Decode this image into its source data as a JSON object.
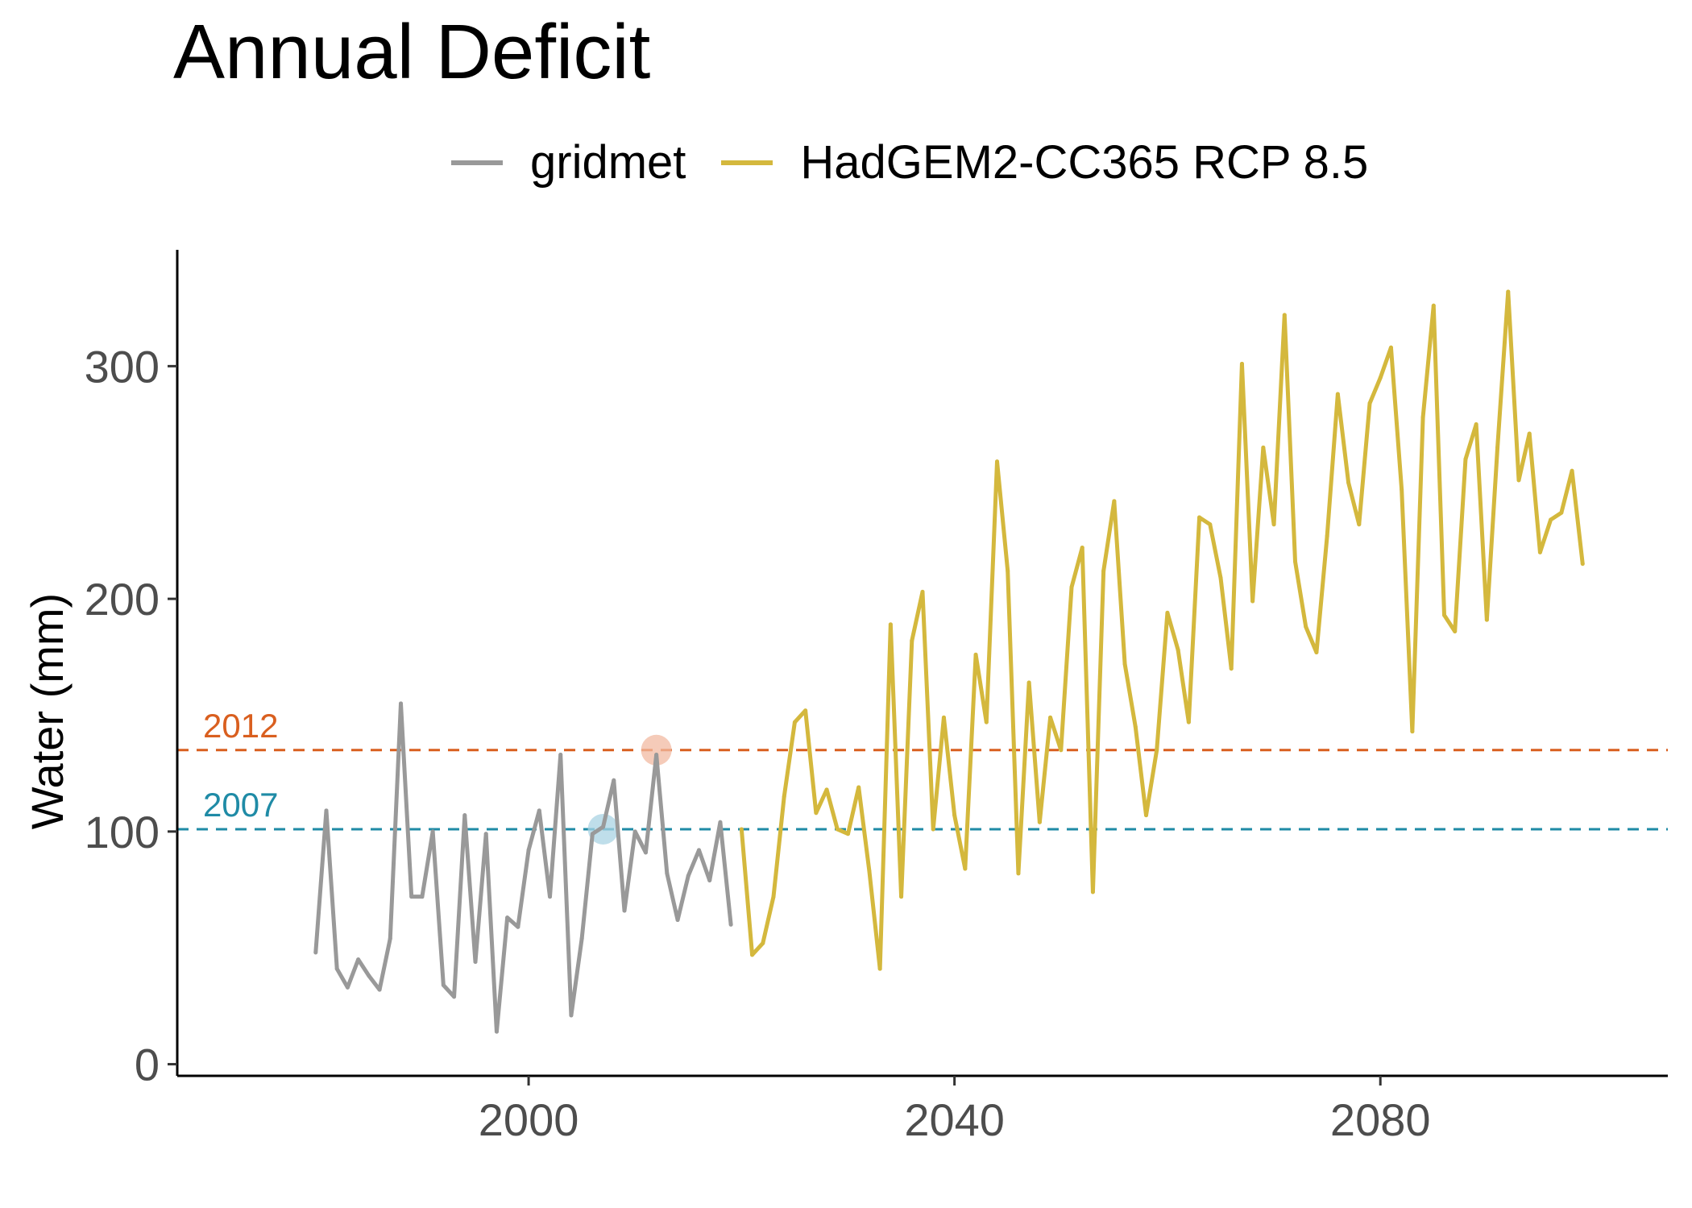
{
  "chart_data": {
    "type": "line",
    "title": "Annual Deficit",
    "xlabel": "",
    "ylabel": "Water (mm)",
    "xlim": [
      1967,
      2107
    ],
    "ylim": [
      -5,
      350
    ],
    "x_ticks": [
      2000,
      2040,
      2080
    ],
    "y_ticks": [
      0,
      100,
      200,
      300
    ],
    "grid": false,
    "legend_position": "top",
    "series": [
      {
        "name": "gridmet",
        "color": "#999999",
        "x": [
          1980,
          1981,
          1982,
          1983,
          1984,
          1985,
          1986,
          1987,
          1988,
          1989,
          1990,
          1991,
          1992,
          1993,
          1994,
          1995,
          1996,
          1997,
          1998,
          1999,
          2000,
          2001,
          2002,
          2003,
          2004,
          2005,
          2006,
          2007,
          2008,
          2009,
          2010,
          2011,
          2012,
          2013,
          2014,
          2015,
          2016,
          2017,
          2018,
          2019
        ],
        "y": [
          48,
          109,
          41,
          33,
          45,
          38,
          32,
          54,
          155,
          72,
          72,
          100,
          34,
          29,
          107,
          44,
          99,
          14,
          63,
          59,
          92,
          109,
          72,
          133,
          21,
          54,
          99,
          102,
          122,
          66,
          100,
          91,
          133,
          82,
          62,
          81,
          92,
          79,
          104,
          60
        ]
      },
      {
        "name": "HadGEM2-CC365 RCP 8.5",
        "color": "#d4b83d",
        "x": [
          2020,
          2021,
          2022,
          2023,
          2024,
          2025,
          2026,
          2027,
          2028,
          2029,
          2030,
          2031,
          2032,
          2033,
          2034,
          2035,
          2036,
          2037,
          2038,
          2039,
          2040,
          2041,
          2042,
          2043,
          2044,
          2045,
          2046,
          2047,
          2048,
          2049,
          2050,
          2051,
          2052,
          2053,
          2054,
          2055,
          2056,
          2057,
          2058,
          2059,
          2060,
          2061,
          2062,
          2063,
          2064,
          2065,
          2066,
          2067,
          2068,
          2069,
          2070,
          2071,
          2072,
          2073,
          2074,
          2075,
          2076,
          2077,
          2078,
          2079,
          2080,
          2081,
          2082,
          2083,
          2084,
          2085,
          2086,
          2087,
          2088,
          2089,
          2090,
          2091,
          2092,
          2093,
          2094,
          2095,
          2096,
          2097,
          2098,
          2099
        ],
        "y": [
          101,
          47,
          52,
          72,
          115,
          147,
          152,
          108,
          118,
          101,
          99,
          119,
          83,
          41,
          189,
          72,
          182,
          203,
          101,
          149,
          107,
          84,
          176,
          147,
          259,
          212,
          82,
          164,
          104,
          149,
          135,
          205,
          222,
          74,
          212,
          242,
          172,
          145,
          107,
          135,
          194,
          178,
          147,
          235,
          232,
          209,
          170,
          301,
          199,
          265,
          232,
          322,
          216,
          188,
          177,
          227,
          288,
          250,
          232,
          284,
          295,
          308,
          247,
          143,
          278,
          326,
          193,
          186,
          260,
          275,
          191,
          265,
          332,
          251,
          271,
          220,
          234,
          237,
          255,
          215
        ]
      }
    ],
    "reference_lines": [
      {
        "label": "2012",
        "y": 135,
        "color": "#d95f1f",
        "point_x": 2012,
        "point_color": "#f2b9a1"
      },
      {
        "label": "2007",
        "y": 101,
        "color": "#1f8ba6",
        "point_x": 2007,
        "point_color": "#a9d3e3"
      }
    ]
  }
}
